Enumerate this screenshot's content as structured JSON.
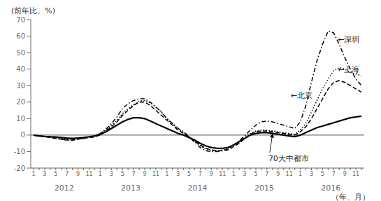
{
  "chart_data": {
    "type": "line",
    "ylabel": "(前年比、%)",
    "xlabel": "（年、月）",
    "categories": [
      "1",
      null,
      "3",
      null,
      "5",
      null,
      "7",
      null,
      "9",
      null,
      "11",
      null,
      "1",
      null,
      "3",
      null,
      "5",
      null,
      "7",
      null,
      "9",
      null,
      "11",
      null,
      "1",
      null,
      "3",
      null,
      "5",
      null,
      "7",
      null,
      "9",
      null,
      "11",
      null,
      "1",
      null,
      "3",
      null,
      "5",
      null,
      "7",
      null,
      "9",
      null,
      "11",
      null,
      "1",
      null,
      "3",
      null,
      "5",
      null,
      "7",
      null,
      "9",
      null,
      "11",
      null
    ],
    "year_labels": [
      "2012",
      "2013",
      "2014",
      "2015",
      "2016"
    ],
    "ylim": [
      -20,
      70
    ],
    "yticks": [
      -20,
      -10,
      0,
      10,
      20,
      30,
      40,
      50,
      60,
      70
    ],
    "grid": false,
    "series": [
      {
        "color": "black",
        "line_style": "solid",
        "values": [
          0.0,
          -0.5,
          -0.8,
          -1.0,
          -1.2,
          -1.5,
          -1.8,
          -2.0,
          -1.8,
          -1.5,
          -1.0,
          -0.5,
          0.5,
          2.0,
          4.0,
          6.0,
          8.0,
          9.5,
          10.5,
          10.5,
          10.0,
          8.5,
          7.0,
          5.5,
          4.0,
          2.5,
          1.0,
          0.0,
          -1.5,
          -3.0,
          -5.0,
          -6.5,
          -7.5,
          -8.0,
          -8.0,
          -7.5,
          -6.0,
          -4.0,
          -2.0,
          0.0,
          1.0,
          1.5,
          1.5,
          1.0,
          0.5,
          0.0,
          -0.5,
          -1.0,
          0.0,
          1.5,
          3.0,
          4.5,
          5.5,
          6.5,
          7.5,
          8.5,
          9.5,
          10.5,
          11.0,
          11.5
        ]
      },
      {
        "color": "black",
        "line_style": "dashed",
        "values": [
          0.0,
          -0.5,
          -1.0,
          -1.5,
          -2.0,
          -2.5,
          -3.0,
          -3.0,
          -2.5,
          -2.0,
          -1.5,
          -1.0,
          0.0,
          2.5,
          5.0,
          8.0,
          12.0,
          15.0,
          18.0,
          20.0,
          20.0,
          18.0,
          15.0,
          12.0,
          9.0,
          6.0,
          3.0,
          1.0,
          -1.0,
          -3.5,
          -6.0,
          -8.0,
          -9.0,
          -9.5,
          -9.5,
          -9.0,
          -7.0,
          -5.0,
          -2.0,
          0.5,
          2.0,
          2.5,
          2.5,
          2.0,
          1.5,
          1.0,
          0.5,
          0.0,
          2.0,
          5.0,
          10.0,
          16.0,
          22.0,
          28.0,
          32.0,
          33.0,
          32.0,
          30.0,
          28.0,
          26.0
        ]
      },
      {
        "color": "black",
        "line_style": "dotted",
        "values": [
          0.0,
          -0.5,
          -0.8,
          -1.2,
          -1.8,
          -2.0,
          -2.5,
          -2.5,
          -2.0,
          -1.5,
          -1.0,
          -0.5,
          1.0,
          3.0,
          6.0,
          9.0,
          13.0,
          16.0,
          18.5,
          20.5,
          21.0,
          19.5,
          17.0,
          14.0,
          10.0,
          7.0,
          4.0,
          1.5,
          -1.0,
          -4.0,
          -6.5,
          -8.5,
          -9.5,
          -9.5,
          -9.0,
          -8.0,
          -6.0,
          -4.0,
          -1.5,
          1.0,
          2.5,
          3.0,
          3.0,
          2.5,
          2.0,
          1.5,
          1.0,
          0.5,
          3.0,
          7.0,
          14.0,
          21.0,
          28.0,
          34.0,
          39.0,
          41.0,
          40.0,
          38.0,
          37.0,
          36.0
        ]
      },
      {
        "color": "black",
        "line_style": "dashdot",
        "values": [
          0.0,
          -0.5,
          -0.8,
          -1.2,
          -2.0,
          -2.5,
          -3.0,
          -3.0,
          -2.5,
          -2.0,
          -1.5,
          -1.0,
          1.0,
          3.5,
          7.0,
          11.0,
          16.0,
          19.0,
          21.0,
          22.0,
          22.0,
          20.0,
          17.0,
          14.0,
          10.0,
          7.0,
          4.0,
          2.0,
          -1.0,
          -4.5,
          -7.5,
          -9.5,
          -10.0,
          -10.0,
          -9.5,
          -8.5,
          -6.0,
          -3.5,
          -0.5,
          3.0,
          6.0,
          8.0,
          8.5,
          8.0,
          7.0,
          6.0,
          5.0,
          4.0,
          8.0,
          18.0,
          32.0,
          45.0,
          55.0,
          63.0,
          62.0,
          55.0,
          47.0,
          40.0,
          34.0,
          30.0
        ]
      }
    ],
    "annotations": [
      {
        "text": "←深圳",
        "x": 54.5,
        "y": 58
      },
      {
        "text": "←上海",
        "x": 54.5,
        "y": 40
      },
      {
        "text": "←北京",
        "x": 46,
        "y": 24
      },
      {
        "text": "70大中都市",
        "x": 42,
        "y": -14,
        "arrow_to": [
          43,
          1.0
        ]
      }
    ]
  }
}
